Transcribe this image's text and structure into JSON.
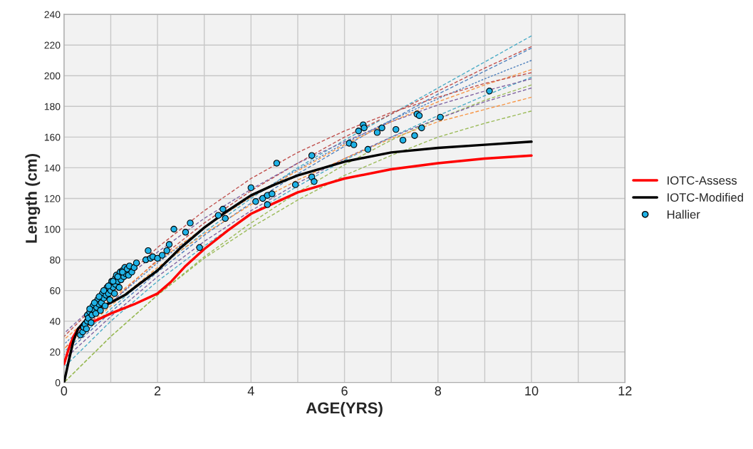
{
  "chart_data": {
    "type": "line",
    "xlabel": "AGE(YRS)",
    "ylabel": "Length (cm)",
    "xlim": [
      0,
      12
    ],
    "ylim": [
      0,
      240
    ],
    "xticks": [
      0,
      {
        "value": 1,
        "label": null
      },
      2,
      {
        "value": 3,
        "label": null
      },
      4,
      {
        "value": 5,
        "label": null
      },
      6,
      {
        "value": 7,
        "label": null
      },
      8,
      {
        "value": 9,
        "label": null
      },
      10,
      {
        "value": 11,
        "label": null
      },
      12
    ],
    "yticks": [
      0,
      20,
      40,
      60,
      80,
      100,
      120,
      140,
      160,
      180,
      200,
      220,
      240
    ],
    "grid": true,
    "legend": "right",
    "series": [
      {
        "color": "#4bacc6",
        "line_style": "dashed",
        "x": [
          0,
          1,
          2,
          3,
          4,
          5,
          6,
          7,
          8,
          9,
          10
        ],
        "values": [
          20,
          48,
          74,
          98,
          120,
          140,
          158,
          175,
          192,
          209,
          226
        ]
      },
      {
        "color": "#c0504d",
        "line_style": "dashed",
        "x": [
          0,
          1,
          2,
          3,
          4,
          5,
          6,
          7,
          8,
          9,
          10
        ],
        "values": [
          22,
          52,
          80,
          104,
          125,
          143,
          160,
          175,
          190,
          205,
          219
        ]
      },
      {
        "color": "#4f81bd",
        "line_style": "dashed",
        "x": [
          0,
          1,
          2,
          3,
          4,
          5,
          6,
          7,
          8,
          9,
          10
        ],
        "values": [
          18,
          46,
          72,
          96,
          117,
          136,
          154,
          171,
          188,
          203,
          218
        ]
      },
      {
        "color": "#4f81bd",
        "line_style": "dotted",
        "x": [
          0,
          1,
          2,
          3,
          4,
          5,
          6,
          7,
          8,
          9,
          10
        ],
        "values": [
          25,
          52,
          78,
          101,
          121,
          139,
          156,
          171,
          185,
          198,
          210
        ]
      },
      {
        "color": "#f79646",
        "line_style": "dashed",
        "x": [
          0,
          1,
          2,
          3,
          4,
          5,
          6,
          7,
          8,
          9,
          10
        ],
        "values": [
          28,
          54,
          79,
          101,
          121,
          138,
          155,
          170,
          183,
          194,
          204
        ]
      },
      {
        "color": "#c0504d",
        "line_style": "dashed",
        "x": [
          0,
          1,
          2,
          3,
          4,
          5,
          6,
          7,
          8,
          9,
          10
        ],
        "values": [
          30,
          60,
          88,
          112,
          133,
          150,
          164,
          176,
          186,
          195,
          202
        ]
      },
      {
        "color": "#4bacc6",
        "line_style": "dashed",
        "x": [
          0,
          1,
          2,
          3,
          4,
          5,
          6,
          7,
          8,
          9,
          10
        ],
        "values": [
          10,
          40,
          66,
          89,
          110,
          128,
          145,
          160,
          174,
          187,
          199
        ]
      },
      {
        "color": "#8064a2",
        "line_style": "dashed",
        "x": [
          0,
          1,
          2,
          3,
          4,
          5,
          6,
          7,
          8,
          9,
          10
        ],
        "values": [
          32,
          60,
          85,
          107,
          126,
          143,
          157,
          170,
          181,
          190,
          198
        ]
      },
      {
        "color": "#9bbb59",
        "line_style": "dashed",
        "x": [
          0,
          1,
          2,
          3,
          4,
          5,
          6,
          7,
          8,
          9,
          10
        ],
        "values": [
          0,
          30,
          57,
          82,
          104,
          124,
          142,
          158,
          172,
          184,
          194
        ]
      },
      {
        "color": "#8064a2",
        "line_style": "dashed",
        "x": [
          0,
          1,
          2,
          3,
          4,
          5,
          6,
          7,
          8,
          9,
          10
        ],
        "values": [
          15,
          43,
          69,
          92,
          112,
          130,
          146,
          160,
          172,
          183,
          192
        ]
      },
      {
        "color": "#f79646",
        "line_style": "dashed",
        "x": [
          0,
          1,
          2,
          3,
          4,
          5,
          6,
          7,
          8,
          9,
          10
        ],
        "values": [
          22,
          50,
          75,
          97,
          116,
          132,
          146,
          159,
          170,
          178,
          186
        ]
      },
      {
        "color": "#9bbb59",
        "line_style": "dashed",
        "x": [
          0,
          1,
          2,
          3,
          4,
          5,
          6,
          7,
          8,
          9,
          10
        ],
        "values": [
          0,
          30,
          57,
          81,
          101,
          119,
          135,
          148,
          160,
          169,
          177
        ]
      },
      {
        "name": "IOTC-Assess",
        "color": "#ff0000",
        "line_style": "solid",
        "x": [
          0,
          0.1,
          0.2,
          0.3,
          1,
          1.5,
          2,
          2.3,
          2.6,
          3,
          3.5,
          4,
          4.5,
          5,
          6,
          7,
          8,
          9,
          10
        ],
        "values": [
          12,
          22,
          30,
          35,
          45,
          51,
          58,
          66,
          76,
          87,
          99,
          110,
          117,
          124,
          133,
          139,
          143,
          146,
          148
        ]
      },
      {
        "name": "IOTC-Modified",
        "color": "#000000",
        "line_style": "solid",
        "x": [
          0,
          0.1,
          0.2,
          0.3,
          0.5,
          0.7,
          1,
          1.3,
          1.6,
          2,
          2.5,
          3,
          3.5,
          4,
          4.5,
          5,
          6,
          7,
          8,
          9,
          10
        ],
        "values": [
          0,
          14,
          27,
          35,
          42,
          49,
          52,
          57,
          64,
          73,
          88,
          101,
          112,
          122,
          129,
          135,
          144,
          150,
          153,
          155,
          157
        ]
      },
      {
        "name": "Hallier",
        "type": "scatter",
        "marker": "circle",
        "color": "#1fb2e6",
        "x": [
          0.35,
          0.4,
          0.42,
          0.45,
          0.48,
          0.5,
          0.5,
          0.52,
          0.55,
          0.58,
          0.6,
          0.62,
          0.65,
          0.68,
          0.7,
          0.72,
          0.75,
          0.78,
          0.8,
          0.82,
          0.85,
          0.88,
          0.9,
          0.92,
          0.95,
          0.98,
          1.0,
          1.0,
          1.02,
          1.05,
          1.08,
          1.1,
          1.1,
          1.12,
          1.15,
          1.18,
          1.2,
          1.22,
          1.25,
          1.28,
          1.3,
          1.32,
          1.35,
          1.38,
          1.4,
          1.45,
          1.5,
          1.55,
          0.55,
          0.65,
          0.75,
          0.85,
          0.95,
          1.05,
          1.15,
          1.25,
          1.8,
          1.75,
          1.85,
          1.9,
          2.0,
          2.1,
          2.2,
          2.25,
          2.35,
          2.6,
          2.7,
          2.9,
          3.3,
          3.4,
          3.45,
          4.0,
          4.1,
          4.25,
          4.35,
          4.35,
          4.45,
          4.55,
          4.95,
          5.3,
          5.3,
          5.35,
          6.1,
          6.2,
          6.3,
          6.4,
          6.42,
          6.5,
          6.7,
          6.8,
          7.1,
          7.25,
          7.5,
          7.55,
          7.6,
          7.65,
          8.05,
          9.1
        ],
        "values": [
          31,
          33,
          36,
          38,
          35,
          40,
          44,
          42,
          46,
          39,
          44,
          50,
          47,
          45,
          49,
          54,
          51,
          47,
          52,
          58,
          55,
          50,
          57,
          62,
          58,
          54,
          64,
          60,
          66,
          62,
          58,
          68,
          64,
          70,
          66,
          62,
          72,
          67,
          73,
          69,
          75,
          71,
          74,
          70,
          76,
          72,
          75,
          78,
          48,
          52,
          56,
          60,
          63,
          66,
          69,
          72,
          86,
          80,
          81,
          82,
          81,
          83,
          86,
          90,
          100,
          98,
          104,
          88,
          109,
          113,
          107,
          127,
          118,
          120,
          116,
          122,
          123,
          143,
          129,
          148,
          134,
          131,
          156,
          155,
          164,
          168,
          166,
          152,
          163,
          166,
          165,
          158,
          161,
          175,
          174,
          166,
          173,
          190
        ]
      }
    ]
  }
}
